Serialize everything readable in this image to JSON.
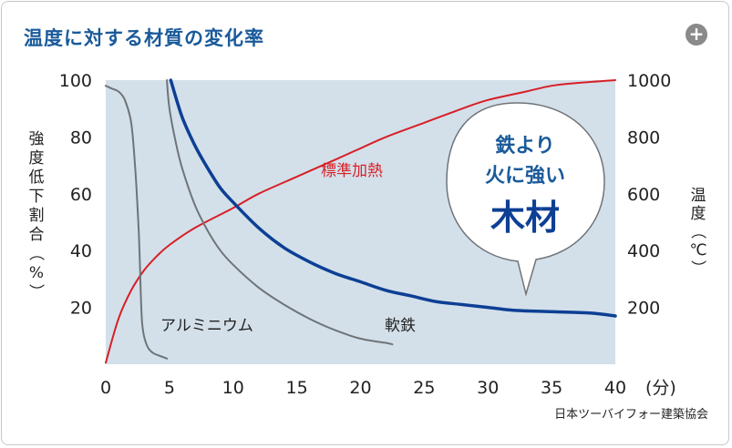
{
  "header": {
    "title": "温度に対する材質の変化率",
    "expand_icon": "plus-circle-icon",
    "expand_label": "+"
  },
  "source": "日本ツーバイフォー建築協会",
  "callout": {
    "line1": "鉄より",
    "line2": "火に強い",
    "line3": "木材"
  },
  "colors": {
    "plot_bg": "#d3e0ea",
    "wood": "#0d3f94",
    "standard_heat": "#d81f26",
    "metals": "#6f7478",
    "title": "#1a5a9a"
  },
  "chart_data": {
    "type": "line",
    "xlabel": "(分)",
    "ylabel_left": "強度低下割合（%）",
    "ylabel_right": "温度（℃）",
    "xlim": [
      0,
      40
    ],
    "ylim_left": [
      0,
      100
    ],
    "ylim_right": [
      0,
      1000
    ],
    "x_ticks": [
      "0",
      "5",
      "10",
      "15",
      "20",
      "25",
      "30",
      "35",
      "40"
    ],
    "y_left_ticks": [
      "100",
      "80",
      "60",
      "40",
      "20"
    ],
    "y_right_ticks": [
      "1000",
      "800",
      "600",
      "400",
      "200"
    ],
    "grid": false,
    "series": [
      {
        "name": "標準加熱",
        "axis": "right",
        "color": "#d81f26",
        "points": [
          [
            0,
            5
          ],
          [
            1,
            160
          ],
          [
            2,
            260
          ],
          [
            3,
            330
          ],
          [
            4,
            380
          ],
          [
            5,
            420
          ],
          [
            7,
            480
          ],
          [
            10,
            550
          ],
          [
            12,
            600
          ],
          [
            15,
            660
          ],
          [
            18,
            720
          ],
          [
            20,
            760
          ],
          [
            22,
            800
          ],
          [
            25,
            850
          ],
          [
            28,
            900
          ],
          [
            30,
            930
          ],
          [
            33,
            960
          ],
          [
            35,
            980
          ],
          [
            37,
            990
          ],
          [
            40,
            1000
          ]
        ]
      },
      {
        "name": "",
        "axis": "left",
        "color": "#0d3f94",
        "points": [
          [
            5.1,
            100
          ],
          [
            6,
            87
          ],
          [
            7,
            77
          ],
          [
            8,
            69
          ],
          [
            9,
            62
          ],
          [
            10,
            57
          ],
          [
            12,
            48
          ],
          [
            14,
            41
          ],
          [
            16,
            36
          ],
          [
            18,
            32
          ],
          [
            20,
            29
          ],
          [
            22,
            26
          ],
          [
            24,
            24
          ],
          [
            26,
            22
          ],
          [
            28,
            21
          ],
          [
            30,
            20
          ],
          [
            32,
            19
          ],
          [
            35,
            18.5
          ],
          [
            38,
            18
          ],
          [
            40,
            17
          ]
        ]
      },
      {
        "name": "アルミニウム",
        "axis": "left",
        "color": "#6f7478",
        "points": [
          [
            0,
            98
          ],
          [
            0.5,
            97
          ],
          [
            1,
            96
          ],
          [
            1.5,
            93
          ],
          [
            2,
            85
          ],
          [
            2.3,
            70
          ],
          [
            2.5,
            55
          ],
          [
            2.65,
            40
          ],
          [
            2.75,
            25
          ],
          [
            2.85,
            15
          ],
          [
            3,
            10
          ],
          [
            3.3,
            6
          ],
          [
            3.7,
            4
          ],
          [
            4.2,
            3
          ],
          [
            4.8,
            2
          ]
        ]
      },
      {
        "name": "軟鉄",
        "axis": "left",
        "color": "#6f7478",
        "points": [
          [
            4.8,
            100
          ],
          [
            5,
            90
          ],
          [
            5.5,
            78
          ],
          [
            6,
            69
          ],
          [
            7,
            56
          ],
          [
            8,
            47
          ],
          [
            9,
            40
          ],
          [
            10,
            35
          ],
          [
            12,
            27
          ],
          [
            14,
            21
          ],
          [
            16,
            16
          ],
          [
            18,
            12
          ],
          [
            20,
            9
          ],
          [
            22,
            7.5
          ],
          [
            22.5,
            7
          ]
        ]
      }
    ]
  }
}
